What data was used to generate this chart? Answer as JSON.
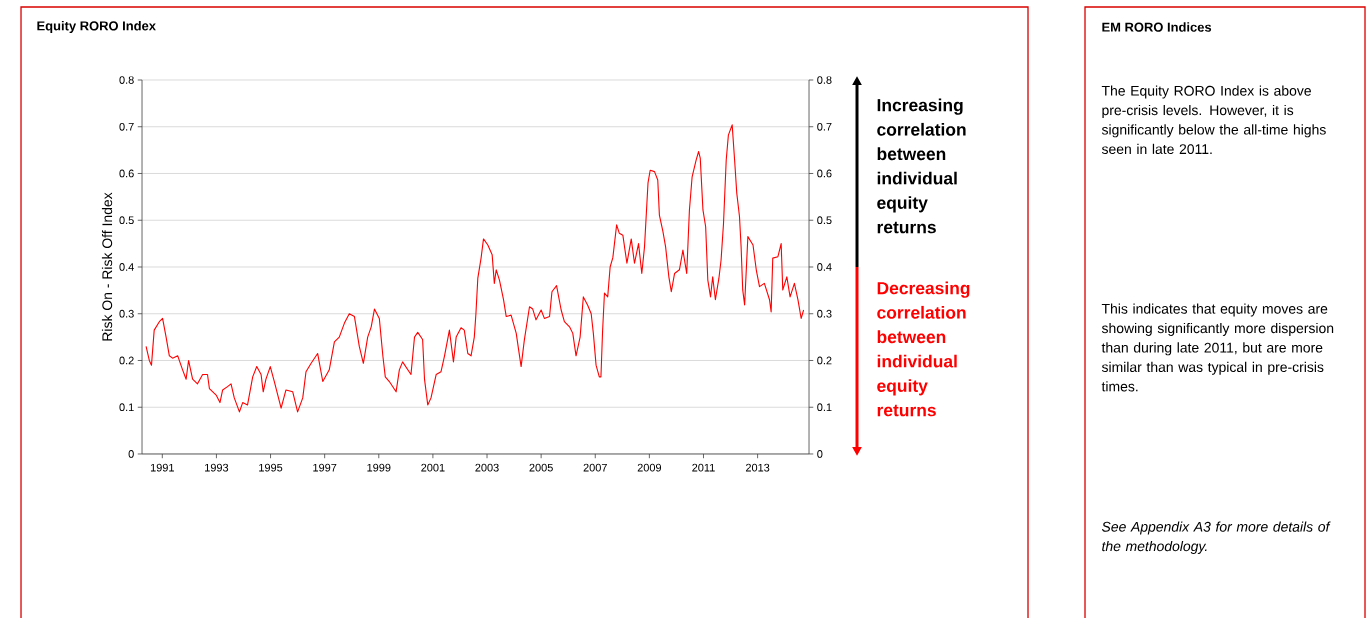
{
  "chart_data": [
    {
      "type": "line",
      "title": "Equity RORO Index",
      "ylabel": "Risk On - Risk Off Index",
      "xlim": [
        1990.25,
        2014.9
      ],
      "xticks": [
        1991,
        1993,
        1995,
        1997,
        1999,
        2001,
        2003,
        2005,
        2007,
        2009,
        2011,
        2013
      ],
      "ylim": [
        0,
        0.8
      ],
      "yticks": [
        0,
        0.1,
        0.2,
        0.3,
        0.4,
        0.5,
        0.6,
        0.7,
        0.8
      ],
      "y2lim": [
        0,
        0.8
      ],
      "y2ticks": [
        0,
        0.1,
        0.2,
        0.3,
        0.4,
        0.5,
        0.6,
        0.7,
        0.8
      ],
      "grid": "y",
      "marker": "none",
      "annotations": [
        "Increasing correlation between individual equity returns",
        "Decreasing correlation between individual equity returns"
      ],
      "series": [
        {
          "color": "#ff0000",
          "x": [
            1990.4,
            1990.52,
            1990.6,
            1990.7,
            1990.89,
            1991.01,
            1991.14,
            1991.26,
            1991.38,
            1991.57,
            1991.75,
            1991.88,
            1991.97,
            1992.12,
            1992.3,
            1992.49,
            1992.67,
            1992.74,
            1992.99,
            1993.13,
            1993.23,
            1993.41,
            1993.54,
            1993.66,
            1993.85,
            1993.97,
            1994.15,
            1994.34,
            1994.49,
            1994.65,
            1994.73,
            1994.83,
            1994.99,
            1995.14,
            1995.39,
            1995.57,
            1995.82,
            1996.0,
            1996.19,
            1996.31,
            1996.5,
            1996.74,
            1996.93,
            1997.17,
            1997.36,
            1997.54,
            1997.73,
            1997.91,
            1998.1,
            1998.28,
            1998.43,
            1998.59,
            1998.72,
            1998.84,
            1999.02,
            1999.15,
            1999.24,
            1999.39,
            1999.64,
            1999.76,
            1999.88,
            2000.19,
            2000.32,
            2000.44,
            2000.62,
            2000.69,
            2000.81,
            2000.93,
            2001.12,
            2001.3,
            2001.43,
            2001.61,
            2001.76,
            2001.86,
            2002.04,
            2002.16,
            2002.29,
            2002.41,
            2002.53,
            2002.59,
            2002.66,
            2002.78,
            2002.87,
            2003.03,
            2003.19,
            2003.27,
            2003.34,
            2003.46,
            2003.61,
            2003.71,
            2003.89,
            2004.08,
            2004.17,
            2004.26,
            2004.38,
            2004.57,
            2004.69,
            2004.81,
            2005.0,
            2005.12,
            2005.31,
            2005.4,
            2005.57,
            2005.74,
            2005.86,
            2006.05,
            2006.17,
            2006.29,
            2006.44,
            2006.56,
            2006.72,
            2006.85,
            2006.93,
            2007.03,
            2007.15,
            2007.21,
            2007.27,
            2007.34,
            2007.46,
            2007.55,
            2007.65,
            2007.79,
            2007.89,
            2008.02,
            2008.17,
            2008.33,
            2008.45,
            2008.6,
            2008.72,
            2008.82,
            2008.95,
            2009.03,
            2009.19,
            2009.31,
            2009.37,
            2009.5,
            2009.6,
            2009.72,
            2009.81,
            2009.93,
            2010.11,
            2010.24,
            2010.38,
            2010.48,
            2010.58,
            2010.73,
            2010.82,
            2010.88,
            2010.98,
            2011.08,
            2011.16,
            2011.26,
            2011.34,
            2011.44,
            2011.57,
            2011.65,
            2011.74,
            2011.84,
            2011.92,
            2012.06,
            2012.15,
            2012.23,
            2012.33,
            2012.39,
            2012.45,
            2012.52,
            2012.64,
            2012.83,
            2012.95,
            2013.07,
            2013.25,
            2013.44,
            2013.5,
            2013.56,
            2013.75,
            2013.87,
            2013.93,
            2014.08,
            2014.2,
            2014.36,
            2014.49,
            2014.61,
            2014.7
          ],
          "values": [
            0.23,
            0.2,
            0.19,
            0.265,
            0.283,
            0.29,
            0.25,
            0.21,
            0.205,
            0.21,
            0.18,
            0.16,
            0.2,
            0.16,
            0.15,
            0.17,
            0.17,
            0.14,
            0.126,
            0.11,
            0.137,
            0.144,
            0.15,
            0.12,
            0.09,
            0.11,
            0.105,
            0.165,
            0.187,
            0.17,
            0.133,
            0.16,
            0.187,
            0.155,
            0.098,
            0.137,
            0.133,
            0.09,
            0.12,
            0.176,
            0.194,
            0.215,
            0.155,
            0.18,
            0.24,
            0.25,
            0.28,
            0.3,
            0.294,
            0.23,
            0.194,
            0.25,
            0.272,
            0.31,
            0.29,
            0.21,
            0.165,
            0.155,
            0.133,
            0.18,
            0.197,
            0.17,
            0.25,
            0.26,
            0.245,
            0.16,
            0.105,
            0.12,
            0.17,
            0.176,
            0.21,
            0.265,
            0.197,
            0.25,
            0.27,
            0.265,
            0.215,
            0.21,
            0.25,
            0.3,
            0.376,
            0.419,
            0.46,
            0.447,
            0.426,
            0.365,
            0.394,
            0.372,
            0.33,
            0.294,
            0.297,
            0.258,
            0.222,
            0.187,
            0.244,
            0.315,
            0.31,
            0.287,
            0.308,
            0.29,
            0.294,
            0.347,
            0.36,
            0.308,
            0.283,
            0.272,
            0.258,
            0.21,
            0.25,
            0.336,
            0.318,
            0.3,
            0.258,
            0.19,
            0.165,
            0.165,
            0.262,
            0.344,
            0.336,
            0.4,
            0.42,
            0.49,
            0.472,
            0.468,
            0.408,
            0.46,
            0.408,
            0.45,
            0.386,
            0.443,
            0.58,
            0.607,
            0.604,
            0.586,
            0.511,
            0.476,
            0.443,
            0.379,
            0.347,
            0.386,
            0.394,
            0.436,
            0.386,
            0.522,
            0.593,
            0.629,
            0.647,
            0.633,
            0.522,
            0.486,
            0.372,
            0.336,
            0.379,
            0.33,
            0.376,
            0.415,
            0.493,
            0.629,
            0.682,
            0.704,
            0.629,
            0.558,
            0.508,
            0.443,
            0.351,
            0.319,
            0.465,
            0.447,
            0.394,
            0.358,
            0.365,
            0.33,
            0.304,
            0.419,
            0.422,
            0.45,
            0.351,
            0.379,
            0.336,
            0.365,
            0.33,
            0.29,
            0.308
          ]
        }
      ]
    },
    {
      "type": "other",
      "title": "EM RORO Indices",
      "annotations": [
        "The Equity RORO Index is above pre-crisis levels. However, it is significantly below the all-time highs seen in late 2011.",
        "This indicates that equity moves are showing significantly more dispersion than during late 2011, but are more similar than was typical in pre-crisis times.",
        "See Appendix A3 for more details of the methodology."
      ]
    }
  ]
}
